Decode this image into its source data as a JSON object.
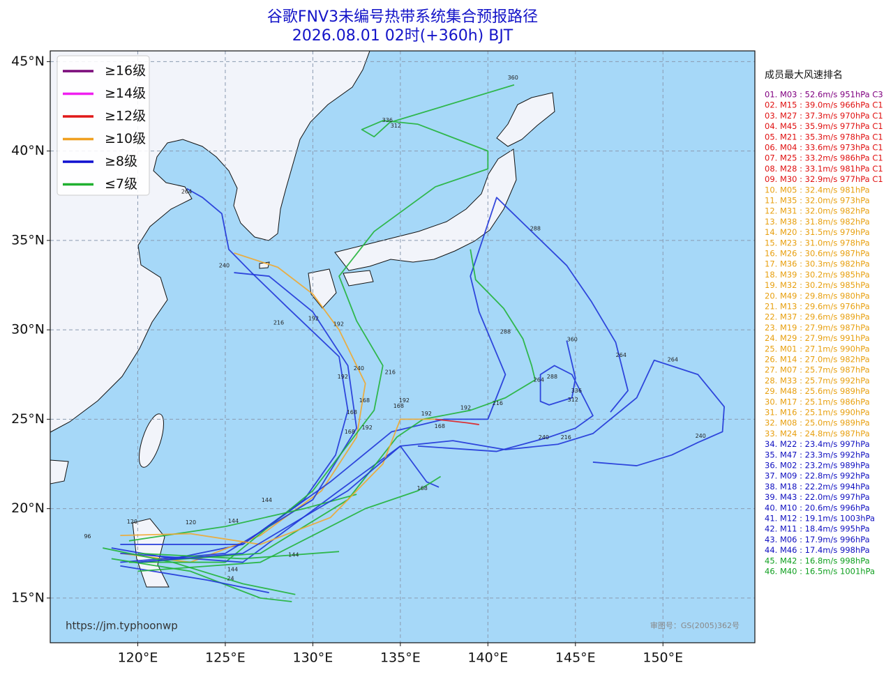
{
  "title": "谷歌FNV3未编号热带系统集合预报路径",
  "subtitle": "2026.08.01 02时(+360h) BJT",
  "map": {
    "lonlim": [
      115,
      155.25
    ],
    "latlim": [
      12.5,
      45.6
    ],
    "lonticks": [
      {
        "value": 120,
        "label": "120°E"
      },
      {
        "value": 125,
        "label": "125°E"
      },
      {
        "value": 130,
        "label": "130°E"
      },
      {
        "value": 135,
        "label": "135°E"
      },
      {
        "value": 140,
        "label": "140°E"
      },
      {
        "value": 145,
        "label": "145°E"
      },
      {
        "value": 150,
        "label": "150°E"
      }
    ],
    "latticks": [
      {
        "value": 15,
        "label": "15°N"
      },
      {
        "value": 20,
        "label": "20°N"
      },
      {
        "value": 25,
        "label": "25°N"
      },
      {
        "value": 30,
        "label": "30°N"
      },
      {
        "value": 35,
        "label": "35°N"
      },
      {
        "value": 40,
        "label": "40°N"
      },
      {
        "value": 45,
        "label": "45°N"
      }
    ],
    "grid": true,
    "tracks": [
      {
        "color": "#2136d8",
        "points": [
          [
            118.5,
            17.8
          ],
          [
            122,
            17.2
          ],
          [
            126,
            18
          ],
          [
            129.5,
            20.5
          ],
          [
            131.3,
            23
          ],
          [
            132,
            25.5
          ],
          [
            131.5,
            28.5
          ],
          [
            128.5,
            31.3
          ],
          [
            126.5,
            33.2
          ],
          [
            125.2,
            34.5
          ],
          [
            124.8,
            36.5
          ],
          [
            123.7,
            37.4
          ],
          [
            122.8,
            37.9
          ]
        ]
      },
      {
        "color": "#f0a830",
        "points": [
          [
            119,
            17.5
          ],
          [
            123,
            17
          ],
          [
            127,
            18.5
          ],
          [
            130.5,
            21
          ],
          [
            132.5,
            24
          ],
          [
            133,
            27
          ],
          [
            131.5,
            30
          ],
          [
            130,
            32
          ],
          [
            128,
            33.5
          ],
          [
            125.5,
            34.3
          ]
        ]
      },
      {
        "color": "#2136d8",
        "points": [
          [
            119,
            17
          ],
          [
            125,
            17.5
          ],
          [
            130,
            20.5
          ],
          [
            132.5,
            24.5
          ],
          [
            132,
            28
          ],
          [
            130,
            31
          ],
          [
            127.5,
            33
          ],
          [
            125.5,
            33.2
          ]
        ]
      },
      {
        "color": "#22b43a",
        "points": [
          [
            119.5,
            17
          ],
          [
            125,
            17
          ],
          [
            130,
            21
          ],
          [
            133.5,
            25.5
          ],
          [
            134,
            28
          ],
          [
            132.5,
            30.5
          ],
          [
            131.5,
            33
          ],
          [
            133.5,
            35.5
          ],
          [
            137,
            38
          ],
          [
            140,
            39
          ],
          [
            140,
            40
          ],
          [
            136,
            41.5
          ],
          [
            134,
            41.7
          ],
          [
            132.8,
            41.2
          ],
          [
            133.5,
            40.8
          ],
          [
            134.4,
            41.6
          ],
          [
            141.5,
            43.7
          ]
        ]
      },
      {
        "color": "#2136d8",
        "points": [
          [
            119,
            18
          ],
          [
            126,
            18
          ],
          [
            131,
            21.5
          ],
          [
            134.5,
            24.3
          ],
          [
            137.5,
            25
          ],
          [
            140,
            25
          ],
          [
            141,
            27.5
          ],
          [
            139.5,
            31
          ],
          [
            139,
            33
          ],
          [
            140.5,
            37.4
          ],
          [
            144.5,
            33.6
          ],
          [
            145.9,
            31.6
          ],
          [
            147.3,
            29.3
          ],
          [
            148,
            26.6
          ],
          [
            147,
            25.4
          ]
        ]
      },
      {
        "color": "#2136d8",
        "points": [
          [
            119,
            17.5
          ],
          [
            126,
            17
          ],
          [
            131.5,
            21
          ],
          [
            135,
            23.5
          ],
          [
            138,
            23.8
          ],
          [
            141,
            23.3
          ],
          [
            144,
            23.6
          ],
          [
            146,
            24.2
          ],
          [
            148.5,
            26.2
          ],
          [
            149.5,
            28.3
          ],
          [
            152,
            27.5
          ],
          [
            153.5,
            25.7
          ],
          [
            153.4,
            24.3
          ],
          [
            152,
            23.7
          ],
          [
            150.5,
            23
          ],
          [
            148.5,
            22.4
          ],
          [
            146,
            22.6
          ]
        ]
      },
      {
        "color": "#22b43a",
        "points": [
          [
            120,
            17
          ],
          [
            127,
            17.5
          ],
          [
            132,
            20.5
          ],
          [
            134.8,
            24
          ],
          [
            136.3,
            25
          ],
          [
            139,
            25.5
          ],
          [
            141,
            26.2
          ],
          [
            142.7,
            27.2
          ],
          [
            142.5,
            28
          ],
          [
            142,
            29.5
          ],
          [
            140.9,
            31.2
          ],
          [
            139.3,
            32.8
          ],
          [
            139,
            34.5
          ]
        ]
      },
      {
        "color": "#2136d8",
        "points": [
          [
            136,
            23.5
          ],
          [
            140.5,
            23.2
          ],
          [
            143.5,
            24
          ],
          [
            145,
            24.5
          ],
          [
            146,
            25.2
          ],
          [
            144.8,
            27.5
          ],
          [
            143.8,
            28
          ],
          [
            143,
            27.5
          ],
          [
            143,
            26
          ],
          [
            143.5,
            25.8
          ],
          [
            144.8,
            26.2
          ],
          [
            145,
            27.3
          ],
          [
            144.5,
            29.4
          ]
        ]
      },
      {
        "color": "#22b43a",
        "points": [
          [
            118,
            17.8
          ],
          [
            122,
            17
          ],
          [
            126,
            15.8
          ],
          [
            129,
            15.2
          ]
        ]
      },
      {
        "color": "#22b43a",
        "points": [
          [
            118.5,
            17.2
          ],
          [
            123,
            16.5
          ],
          [
            127,
            15
          ],
          [
            128.8,
            14.8
          ]
        ]
      },
      {
        "color": "#2136d8",
        "points": [
          [
            119,
            16.8
          ],
          [
            124,
            16
          ],
          [
            127.5,
            15.3
          ]
        ]
      },
      {
        "color": "#22b43a",
        "points": [
          [
            119.5,
            18.2
          ],
          [
            125,
            19
          ],
          [
            129.5,
            20
          ],
          [
            132.5,
            20.8
          ]
        ]
      },
      {
        "color": "#22b43a",
        "points": [
          [
            120,
            17.5
          ],
          [
            126,
            17.2
          ],
          [
            131.5,
            17.6
          ]
        ]
      },
      {
        "color": "#f0a830",
        "points": [
          [
            119,
            18.5
          ],
          [
            123,
            18.6
          ],
          [
            127,
            18
          ],
          [
            131,
            19.5
          ],
          [
            134,
            22.5
          ],
          [
            135,
            25
          ],
          [
            137,
            25
          ]
        ]
      },
      {
        "color": "#e02020",
        "points": [
          [
            137,
            25
          ],
          [
            138.8,
            24.8
          ],
          [
            139.5,
            24.7
          ]
        ]
      },
      {
        "color": "#2136d8",
        "points": [
          [
            120,
            17
          ],
          [
            126,
            17.5
          ],
          [
            132,
            21
          ],
          [
            135,
            23.5
          ],
          [
            136.5,
            21.5
          ],
          [
            137.2,
            21.2
          ]
        ]
      },
      {
        "color": "#22b43a",
        "points": [
          [
            120,
            16.5
          ],
          [
            127,
            17
          ],
          [
            133,
            20
          ],
          [
            136,
            21
          ],
          [
            137.3,
            21.8
          ]
        ]
      }
    ],
    "labels": [
      {
        "text": 360,
        "lon": 141.43,
        "lat": 44.1
      },
      {
        "text": 336,
        "lon": 134.26,
        "lat": 41.72
      },
      {
        "text": 312,
        "lon": 134.74,
        "lat": 41.41
      },
      {
        "text": 288,
        "lon": 142.71,
        "lat": 35.66
      },
      {
        "text": 264,
        "lon": 122.79,
        "lat": 37.73
      },
      {
        "text": 240,
        "lon": 124.94,
        "lat": 33.59
      },
      {
        "text": 216,
        "lon": 128.05,
        "lat": 30.39
      },
      {
        "text": 192,
        "lon": 130.04,
        "lat": 30.63
      },
      {
        "text": 192,
        "lon": 131.47,
        "lat": 30.31
      },
      {
        "text": 288,
        "lon": 141.0,
        "lat": 29.88
      },
      {
        "text": 360,
        "lon": 144.82,
        "lat": 29.45
      },
      {
        "text": 264,
        "lon": 147.61,
        "lat": 28.59
      },
      {
        "text": 264,
        "lon": 150.56,
        "lat": 28.32
      },
      {
        "text": 264,
        "lon": 142.91,
        "lat": 27.19
      },
      {
        "text": 288,
        "lon": 143.67,
        "lat": 27.38
      },
      {
        "text": 336,
        "lon": 145.06,
        "lat": 26.6
      },
      {
        "text": 312,
        "lon": 144.86,
        "lat": 26.09
      },
      {
        "text": 240,
        "lon": 152.15,
        "lat": 24.06
      },
      {
        "text": 216,
        "lon": 144.46,
        "lat": 23.98
      },
      {
        "text": 240,
        "lon": 143.19,
        "lat": 23.98
      },
      {
        "text": 216,
        "lon": 140.56,
        "lat": 25.9
      },
      {
        "text": 192,
        "lon": 138.73,
        "lat": 25.63
      },
      {
        "text": 192,
        "lon": 136.49,
        "lat": 25.31
      },
      {
        "text": 168,
        "lon": 137.25,
        "lat": 24.61
      },
      {
        "text": 168,
        "lon": 136.25,
        "lat": 21.13
      },
      {
        "text": 240,
        "lon": 132.63,
        "lat": 27.85
      },
      {
        "text": 216,
        "lon": 134.42,
        "lat": 27.62
      },
      {
        "text": 192,
        "lon": 131.71,
        "lat": 27.38
      },
      {
        "text": 168,
        "lon": 132.95,
        "lat": 26.05
      },
      {
        "text": 192,
        "lon": 135.22,
        "lat": 26.05
      },
      {
        "text": 168,
        "lon": 134.9,
        "lat": 25.74
      },
      {
        "text": 168,
        "lon": 132.23,
        "lat": 25.39
      },
      {
        "text": 192,
        "lon": 133.1,
        "lat": 24.53
      },
      {
        "text": 168,
        "lon": 132.11,
        "lat": 24.3
      },
      {
        "text": 144,
        "lon": 127.37,
        "lat": 20.47
      },
      {
        "text": 144,
        "lon": 125.46,
        "lat": 19.3
      },
      {
        "text": 120,
        "lon": 119.68,
        "lat": 19.26
      },
      {
        "text": 120,
        "lon": 123.03,
        "lat": 19.22
      },
      {
        "text": 144,
        "lon": 128.9,
        "lat": 17.42
      },
      {
        "text": 144,
        "lon": 125.42,
        "lat": 16.6
      },
      {
        "text": 96,
        "lon": 117.13,
        "lat": 18.44
      },
      {
        "text": 24,
        "lon": 125.3,
        "lat": 16.09
      }
    ],
    "watermark": "https://jm.typhoonwp",
    "approval": "审图号：GS(2005)362号"
  },
  "legend": [
    {
      "label": "≥16级",
      "color": "#7a0a7a"
    },
    {
      "label": "≥14级",
      "color": "#f020f0"
    },
    {
      "label": "≥12级",
      "color": "#e01818"
    },
    {
      "label": "≥10级",
      "color": "#f0a020"
    },
    {
      "label": "≥8级",
      "color": "#1010d0"
    },
    {
      "label": "≤7级",
      "color": "#20b030"
    }
  ],
  "ranking": {
    "title": "成员最大风速排名",
    "items": [
      {
        "text": "01. M03 : 52.6m/s 951hPa C3",
        "color": "#800080"
      },
      {
        "text": "02. M15 : 39.0m/s 966hPa C1",
        "color": "#e01010"
      },
      {
        "text": "03. M27 : 37.3m/s 970hPa C1",
        "color": "#e01010"
      },
      {
        "text": "04. M45 : 35.9m/s 977hPa C1",
        "color": "#e01010"
      },
      {
        "text": "05. M21 : 35.3m/s 978hPa C1",
        "color": "#e01010"
      },
      {
        "text": "06. M04 : 33.6m/s 973hPa C1",
        "color": "#e01010"
      },
      {
        "text": "07. M25 : 33.2m/s 986hPa C1",
        "color": "#e01010"
      },
      {
        "text": "08. M28 : 33.1m/s 981hPa C1",
        "color": "#e01010"
      },
      {
        "text": "09. M30 : 32.9m/s 977hPa C1",
        "color": "#e01010"
      },
      {
        "text": "10. M05 : 32.4m/s 981hPa",
        "color": "#e8a010"
      },
      {
        "text": "11. M35 : 32.0m/s 973hPa",
        "color": "#e8a010"
      },
      {
        "text": "12. M31 : 32.0m/s 982hPa",
        "color": "#e8a010"
      },
      {
        "text": "13. M38 : 31.8m/s 982hPa",
        "color": "#e8a010"
      },
      {
        "text": "14. M20 : 31.5m/s 979hPa",
        "color": "#e8a010"
      },
      {
        "text": "15. M23 : 31.0m/s 978hPa",
        "color": "#e8a010"
      },
      {
        "text": "16. M26 : 30.6m/s 987hPa",
        "color": "#e8a010"
      },
      {
        "text": "17. M36 : 30.3m/s 982hPa",
        "color": "#e8a010"
      },
      {
        "text": "18. M39 : 30.2m/s 985hPa",
        "color": "#e8a010"
      },
      {
        "text": "19. M32 : 30.2m/s 985hPa",
        "color": "#e8a010"
      },
      {
        "text": "20. M49 : 29.8m/s 980hPa",
        "color": "#e8a010"
      },
      {
        "text": "21. M13 : 29.6m/s 976hPa",
        "color": "#e8a010"
      },
      {
        "text": "22. M37 : 29.6m/s 989hPa",
        "color": "#e8a010"
      },
      {
        "text": "23. M19 : 27.9m/s 987hPa",
        "color": "#e8a010"
      },
      {
        "text": "24. M29 : 27.9m/s 991hPa",
        "color": "#e8a010"
      },
      {
        "text": "25. M01 : 27.1m/s 990hPa",
        "color": "#e8a010"
      },
      {
        "text": "26. M14 : 27.0m/s 982hPa",
        "color": "#e8a010"
      },
      {
        "text": "27. M07 : 25.7m/s 987hPa",
        "color": "#e8a010"
      },
      {
        "text": "28. M33 : 25.7m/s 992hPa",
        "color": "#e8a010"
      },
      {
        "text": "29. M48 : 25.6m/s 989hPa",
        "color": "#e8a010"
      },
      {
        "text": "30. M17 : 25.1m/s 986hPa",
        "color": "#e8a010"
      },
      {
        "text": "31. M16 : 25.1m/s 990hPa",
        "color": "#e8a010"
      },
      {
        "text": "32. M08 : 25.0m/s 989hPa",
        "color": "#e8a010"
      },
      {
        "text": "33. M24 : 24.8m/s 987hPa",
        "color": "#e8a010"
      },
      {
        "text": "34. M22 : 23.4m/s 997hPa",
        "color": "#1010c0"
      },
      {
        "text": "35. M47 : 23.3m/s 992hPa",
        "color": "#1010c0"
      },
      {
        "text": "36. M02 : 23.2m/s 989hPa",
        "color": "#1010c0"
      },
      {
        "text": "37. M09 : 22.8m/s 992hPa",
        "color": "#1010c0"
      },
      {
        "text": "38. M18 : 22.2m/s 994hPa",
        "color": "#1010c0"
      },
      {
        "text": "39. M43 : 22.0m/s 997hPa",
        "color": "#1010c0"
      },
      {
        "text": "40. M10 : 20.6m/s 996hPa",
        "color": "#1010c0"
      },
      {
        "text": "41. M12 : 19.1m/s 1003hPa",
        "color": "#1010c0"
      },
      {
        "text": "42. M11 : 18.4m/s 995hPa",
        "color": "#1010c0"
      },
      {
        "text": "43. M06 : 17.9m/s 996hPa",
        "color": "#1010c0"
      },
      {
        "text": "44. M46 : 17.4m/s 998hPa",
        "color": "#1010c0"
      },
      {
        "text": "45. M42 : 16.8m/s 998hPa",
        "color": "#10a020"
      },
      {
        "text": "46. M40 : 16.5m/s 1001hPa",
        "color": "#10a020"
      }
    ]
  }
}
